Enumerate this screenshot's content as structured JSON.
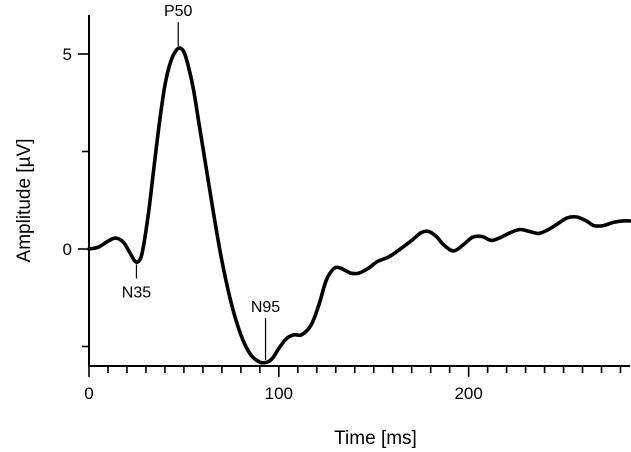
{
  "chart_data": {
    "type": "line",
    "title": "",
    "xlabel": "Time [ms]",
    "ylabel": "Amplitude [µV]",
    "xlim": [
      0,
      285
    ],
    "ylim": [
      -3,
      6
    ],
    "x_ticks": [
      {
        "value": 0,
        "label": "0"
      },
      {
        "value": 100,
        "label": "100"
      },
      {
        "value": 200,
        "label": "200"
      }
    ],
    "x_minor_step": 10,
    "y_ticks": [
      {
        "value": 0,
        "label": "0"
      },
      {
        "value": 5,
        "label": "5"
      }
    ],
    "y_minor_step": 2.5,
    "grid": false,
    "legend": "none",
    "line_color": "#000000",
    "series": [
      {
        "x": [
          0,
          5,
          10,
          14,
          18,
          21,
          24,
          26,
          28,
          31,
          34,
          37,
          40,
          43,
          46,
          48,
          50,
          52,
          55,
          58,
          62,
          66,
          70,
          75,
          80,
          85,
          90,
          94,
          97,
          100,
          104,
          108,
          112,
          117,
          121,
          125,
          129,
          132,
          135,
          138,
          142,
          147,
          152,
          158,
          164,
          170,
          175,
          179,
          183,
          187,
          192,
          197,
          202,
          207,
          212,
          217,
          222,
          227,
          232,
          237,
          242,
          247,
          252,
          257,
          262,
          266,
          271,
          276,
          281,
          285
        ],
        "y": [
          0.0,
          0.05,
          0.2,
          0.28,
          0.18,
          -0.05,
          -0.3,
          -0.32,
          -0.1,
          0.8,
          2.0,
          3.2,
          4.2,
          4.8,
          5.1,
          5.15,
          5.05,
          4.75,
          4.1,
          3.2,
          2.0,
          0.8,
          -0.3,
          -1.4,
          -2.2,
          -2.7,
          -2.9,
          -2.9,
          -2.78,
          -2.55,
          -2.3,
          -2.2,
          -2.2,
          -1.95,
          -1.45,
          -0.8,
          -0.5,
          -0.48,
          -0.55,
          -0.62,
          -0.62,
          -0.5,
          -0.32,
          -0.2,
          0.0,
          0.22,
          0.42,
          0.45,
          0.32,
          0.1,
          -0.05,
          0.1,
          0.3,
          0.32,
          0.22,
          0.3,
          0.42,
          0.5,
          0.45,
          0.4,
          0.5,
          0.65,
          0.8,
          0.82,
          0.72,
          0.6,
          0.6,
          0.68,
          0.72,
          0.72
        ]
      }
    ],
    "annotations": [
      {
        "label": "P50",
        "x": 47,
        "y": 5.15,
        "position": "above"
      },
      {
        "label": "N35",
        "x": 25,
        "y": -0.32,
        "position": "below"
      },
      {
        "label": "N95",
        "x": 93,
        "y": -2.9,
        "position": "above"
      }
    ]
  }
}
